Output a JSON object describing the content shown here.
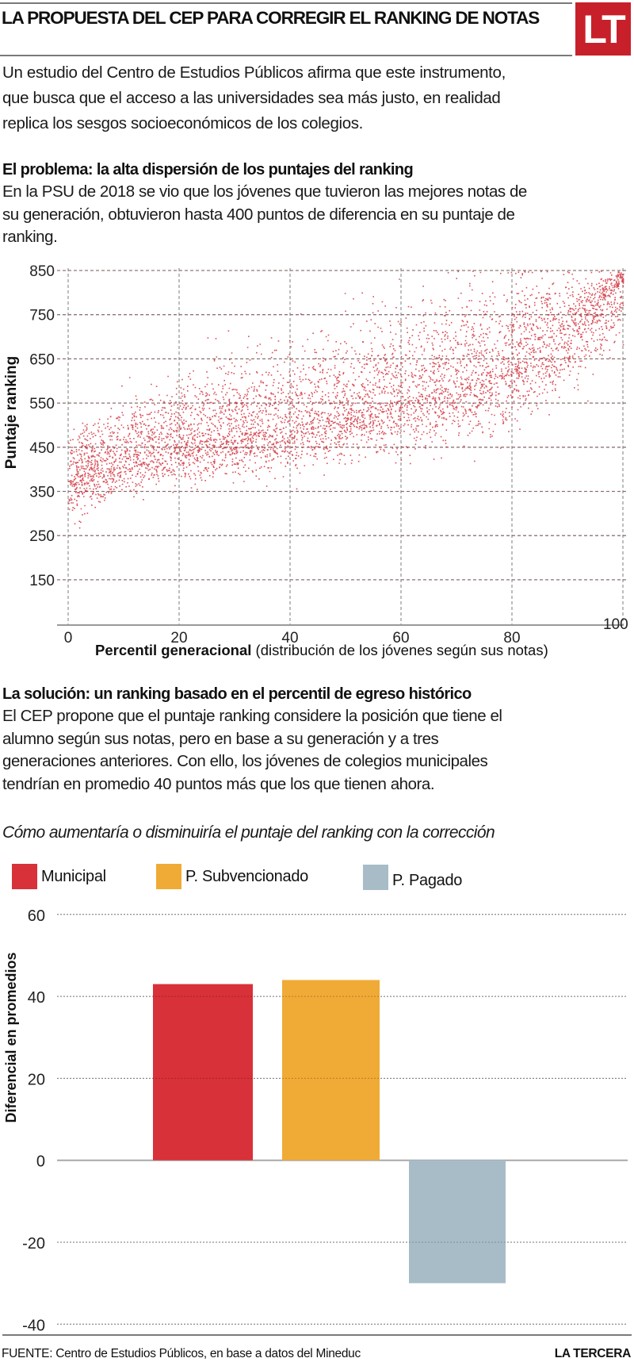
{
  "header": {
    "title": "LA PROPUESTA DEL CEP PARA CORREGIR EL RANKING DE NOTAS",
    "logo_text": "LT",
    "logo_color": "#c8202b"
  },
  "intro": {
    "lines": [
      "Un estudio del Centro de Estudios Públicos afirma que este instrumento,",
      "que busca que el acceso a las universidades sea más justo, en realidad",
      "replica los sesgos socioeconómicos de los colegios."
    ]
  },
  "section1": {
    "heading": "El problema: la alta dispersión de los puntajes del ranking",
    "lines": [
      "En la PSU de 2018 se vio que los jóvenes que tuvieron las mejores notas de",
      "su generación, obtuvieron hasta 400 puntos de diferencia en su puntaje de",
      "ranking."
    ]
  },
  "section2": {
    "heading": "La solución: un ranking basado en el percentil de egreso histórico",
    "lines": [
      "El CEP propone que el puntaje ranking considere la posición que tiene el",
      "alumno según sus notas, pero en base a su generación y a tres",
      "generaciones anteriores. Con ello, los jóvenes de colegios municipales",
      "tendrían en promedio 40 puntos más que los que tienen ahora."
    ]
  },
  "footer": {
    "source": "FUENTE: Centro de Estudios Públicos, en base a datos del Mineduc",
    "brand": "LA TERCERA"
  },
  "chart_data": [
    {
      "type": "scatter",
      "title": "",
      "xlabel_bold": "Percentil generacional",
      "xlabel_rest": " (distribución de los jóvenes según sus notas)",
      "ylabel": "Puntaje ranking",
      "xlim": [
        0,
        100
      ],
      "ylim": [
        50,
        850
      ],
      "x_ticks": [
        "0",
        "20",
        "40",
        "60",
        "80",
        "100"
      ],
      "x_tick_values": [
        0,
        20,
        40,
        60,
        80,
        100
      ],
      "y_ticks": [
        "850",
        "750",
        "650",
        "550",
        "450",
        "350",
        "250",
        "150"
      ],
      "y_tick_values": [
        850,
        750,
        650,
        550,
        450,
        350,
        250,
        150
      ],
      "grid": true,
      "point_color": "#d2333d",
      "note": "Dense point cloud of students; approximate envelope of the cloud by percentile",
      "band": {
        "x": [
          0,
          10,
          20,
          40,
          60,
          80,
          95,
          100
        ],
        "low": [
          280,
          340,
          370,
          400,
          440,
          500,
          620,
          700
        ],
        "mid": [
          380,
          430,
          460,
          500,
          560,
          640,
          760,
          830
        ],
        "high": [
          480,
          560,
          620,
          700,
          780,
          850,
          850,
          850
        ]
      }
    },
    {
      "type": "bar",
      "title": "Cómo aumentaría o disminuiría el puntaje del ranking con la corrección",
      "categories": [
        "Municipal",
        "P. Subvencionado",
        "P. Pagado"
      ],
      "values": [
        43,
        44,
        -30
      ],
      "colors": [
        "#d83139",
        "#f0aa36",
        "#a8bcc7"
      ],
      "xlabel": "",
      "ylabel": "Diferencial en promedios",
      "ylim": [
        -40,
        60
      ],
      "y_ticks": [
        "60",
        "40",
        "20",
        "0",
        "-20",
        "-40"
      ],
      "y_tick_values": [
        60,
        40,
        20,
        0,
        -20,
        -40
      ],
      "grid": true,
      "legend": "top-left"
    }
  ]
}
